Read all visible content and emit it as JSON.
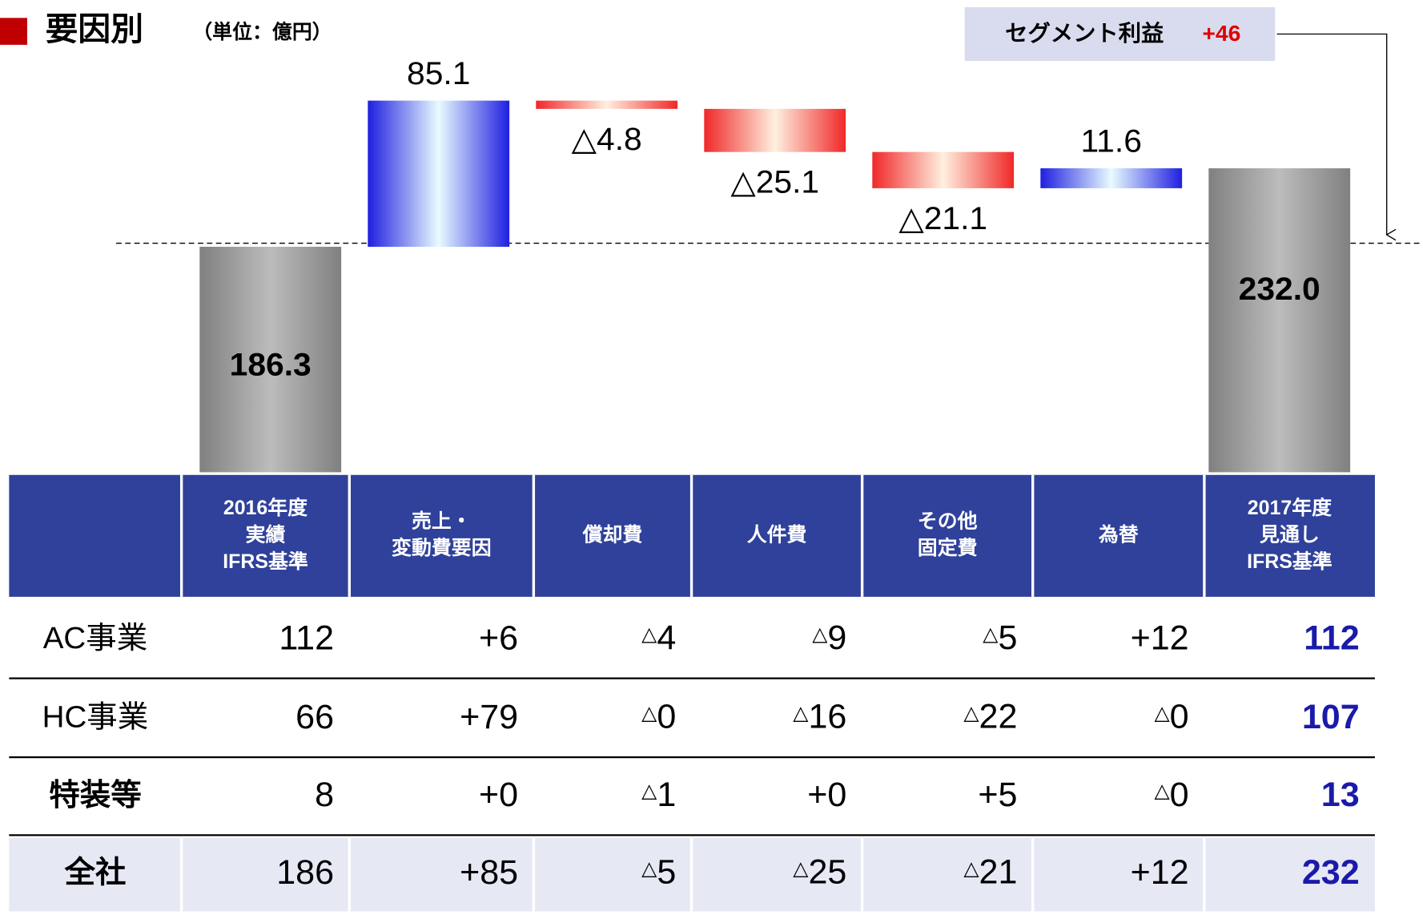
{
  "chart_data": {
    "type": "waterfall",
    "title": "要因別",
    "subtitle": "（単位：億円）",
    "values": [
      186.3,
      85.1,
      -4.8,
      -25.1,
      -21.1,
      11.6,
      232.0
    ],
    "value_labels": [
      "186.3",
      "85.1",
      "△4.8",
      "△25.1",
      "△21.1",
      "11.6",
      "232.0"
    ],
    "totals": [
      0,
      6
    ],
    "ylim": [
      55,
      330
    ],
    "colors": {
      "total": "#8c8c8c",
      "increase": "#1f1fe0",
      "decrease": "#f02828"
    },
    "annotation": {
      "text": "セグメント利益",
      "value_label": "+46"
    }
  },
  "table": {
    "header": [
      [],
      [
        "2016年度",
        "実績",
        "IFRS基準"
      ],
      [
        "売上・",
        "変動費要因"
      ],
      [
        "償却費"
      ],
      [
        "人件費"
      ],
      [
        "その他",
        "固定費"
      ],
      [
        "為替"
      ],
      [
        "2017年度",
        "見通し",
        "IFRS基準"
      ]
    ],
    "rows": [
      [
        "AC事業",
        "112",
        "+6",
        "△4",
        "△9",
        "△5",
        "+12",
        "112"
      ],
      [
        "HC事業",
        "66",
        "+79",
        "△0",
        "△16",
        "△22",
        "△0",
        "107"
      ],
      [
        "特装等",
        "8",
        "+0",
        "△1",
        "+0",
        "+5",
        "△0",
        "13"
      ],
      [
        "全社",
        "186",
        "+85",
        "△5",
        "△25",
        "△21",
        "+12",
        "232"
      ]
    ]
  }
}
